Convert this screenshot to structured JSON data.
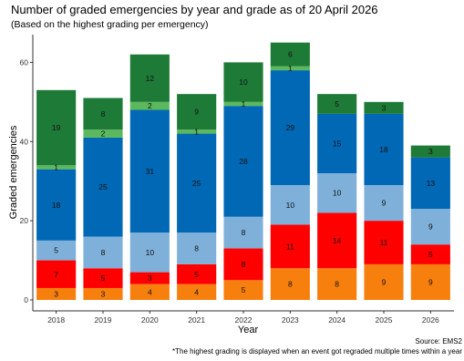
{
  "page": {
    "title": "Number of graded emergencies by year and grade as of 20 April 2026",
    "subtitle": "(Based on the highest grading per emergency)",
    "source": "Source: EMS2",
    "footnote": "*The highest grading is displayed when an event got regraded multiple times within a year"
  },
  "chart_data": {
    "type": "bar",
    "stacked": true,
    "title": "Number of graded emergencies by year and grade as of 20 April 2026",
    "subtitle": "(Based on the highest grading per emergency)",
    "xlabel": "Year",
    "ylabel": "Graded emergencies",
    "ylim": [
      0,
      67
    ],
    "yticks": [
      0,
      20,
      40,
      60
    ],
    "grid": false,
    "legend": "none",
    "categories": [
      "2018",
      "2019",
      "2020",
      "2021",
      "2022",
      "2023",
      "2024",
      "2025",
      "2026"
    ],
    "series": [
      {
        "color": "#f77f0e",
        "values": [
          3,
          3,
          4,
          4,
          5,
          8,
          8,
          9,
          9
        ]
      },
      {
        "color": "#ff0000",
        "values": [
          7,
          5,
          3,
          5,
          8,
          11,
          14,
          11,
          5
        ]
      },
      {
        "color": "#7fb0d9",
        "values": [
          5,
          8,
          10,
          8,
          8,
          10,
          10,
          9,
          9
        ]
      },
      {
        "color": "#0068b4",
        "values": [
          18,
          25,
          31,
          25,
          28,
          29,
          15,
          18,
          13
        ]
      },
      {
        "color": "#5cb85c",
        "values": [
          1,
          2,
          2,
          1,
          1,
          1,
          0,
          0,
          0
        ]
      },
      {
        "color": "#1e7a37",
        "values": [
          19,
          8,
          12,
          9,
          10,
          6,
          5,
          3,
          3
        ]
      }
    ]
  }
}
